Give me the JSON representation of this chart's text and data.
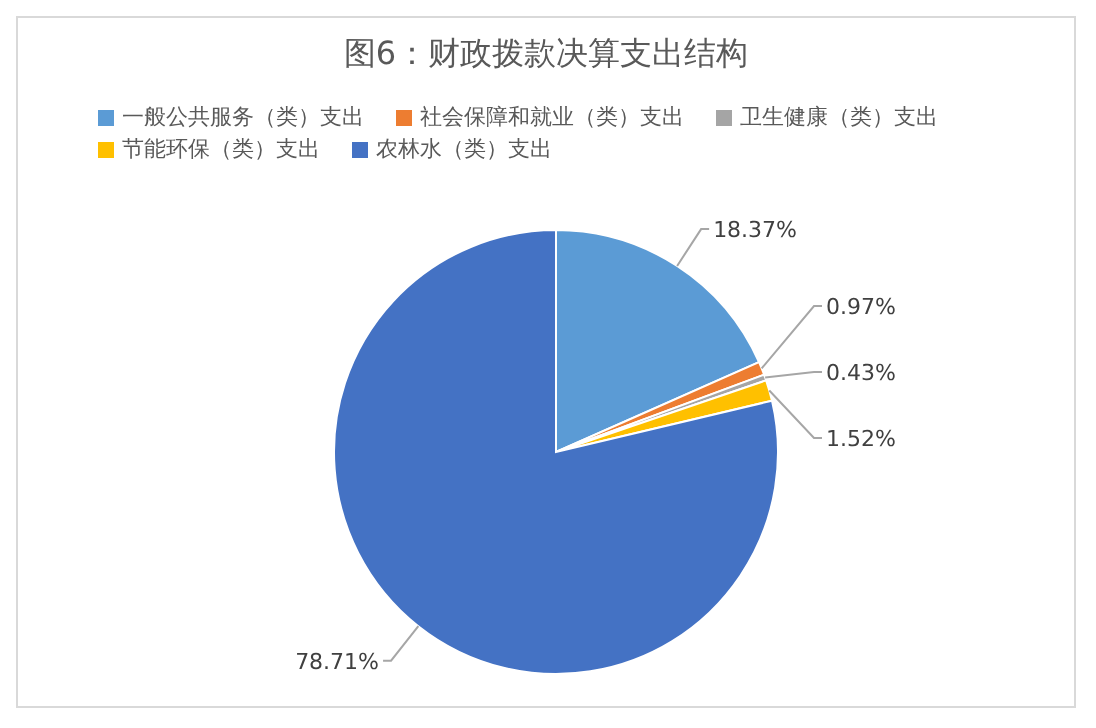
{
  "chart_data": {
    "type": "pie",
    "title": "图6：财政拨款决算支出结构",
    "categories": [
      "一般公共服务（类）支出",
      "社会保障和就业（类）支出",
      "卫生健康（类）支出",
      "节能环保（类）支出",
      "农林水（类）支出"
    ],
    "values": [
      18.37,
      0.97,
      0.43,
      1.52,
      78.71
    ],
    "value_labels": [
      "18.37%",
      "0.97%",
      "0.43%",
      "1.52%",
      "78.71%"
    ],
    "colors": [
      "#5b9bd5",
      "#ed7d31",
      "#a5a5a5",
      "#ffc000",
      "#4472c4"
    ],
    "legend": "top left"
  }
}
